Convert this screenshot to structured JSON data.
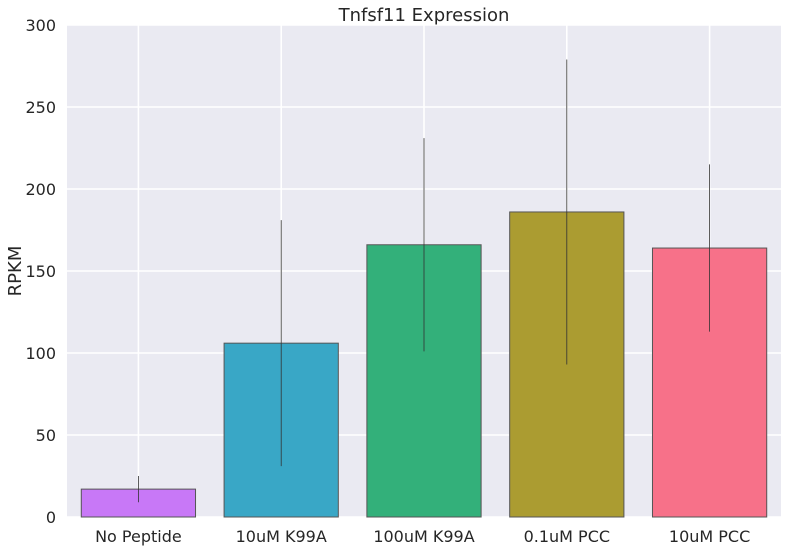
{
  "chart_data": {
    "type": "bar",
    "title": "Tnfsf11 Expression",
    "xlabel": "",
    "ylabel": "RPKM",
    "categories": [
      "No Peptide",
      "10uM K99A",
      "100uM K99A",
      "0.1uM PCC",
      "10uM PCC"
    ],
    "values": [
      17,
      106,
      166,
      186,
      164
    ],
    "errors": [
      8,
      75,
      65,
      93,
      51
    ],
    "colors": [
      "#c878f7",
      "#39a7c6",
      "#33b07a",
      "#ab9c31",
      "#f77189"
    ],
    "ylim": [
      0,
      300
    ],
    "yticks": [
      0,
      50,
      100,
      150,
      200,
      250,
      300
    ],
    "grid": true,
    "background": "#eaeaf2"
  }
}
